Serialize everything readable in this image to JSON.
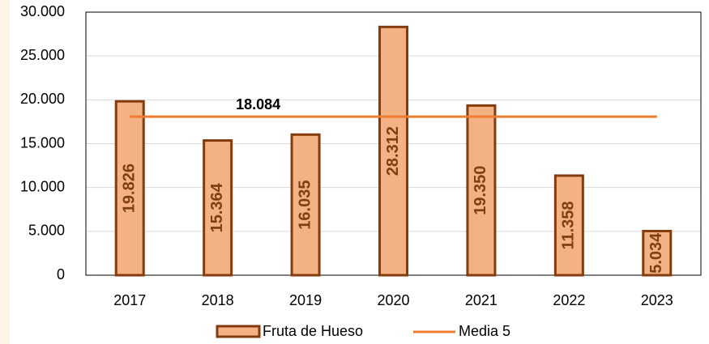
{
  "chart_data": {
    "type": "bar",
    "categories": [
      "2017",
      "2018",
      "2019",
      "2020",
      "2021",
      "2022",
      "2023"
    ],
    "series": [
      {
        "name": "Fruta de Hueso",
        "type": "bar",
        "color": "#f4b183",
        "edge_color": "#843c0c",
        "values": [
          19826,
          15364,
          16035,
          28312,
          19350,
          11358,
          5034
        ],
        "value_labels": [
          "19.826",
          "15.364",
          "16.035",
          "28.312",
          "19.350",
          "11.358",
          "5.034"
        ]
      },
      {
        "name": "Media 5",
        "type": "line",
        "color": "#ed7d31",
        "values": [
          18084,
          18084,
          18084,
          18084,
          18084,
          18084,
          18084
        ],
        "value_labels": [
          null,
          "18.084",
          null,
          null,
          null,
          null,
          null
        ]
      }
    ],
    "ylim": [
      0,
      30000
    ],
    "yticks": [
      {
        "value": 0,
        "label": "0"
      },
      {
        "value": 5000,
        "label": "5.000"
      },
      {
        "value": 10000,
        "label": "10.000"
      },
      {
        "value": 15000,
        "label": "15.000"
      },
      {
        "value": 20000,
        "label": "20.000"
      },
      {
        "value": 25000,
        "label": "25.000"
      },
      {
        "value": 30000,
        "label": "30.000"
      }
    ],
    "grid": true,
    "legend": "bottom"
  }
}
